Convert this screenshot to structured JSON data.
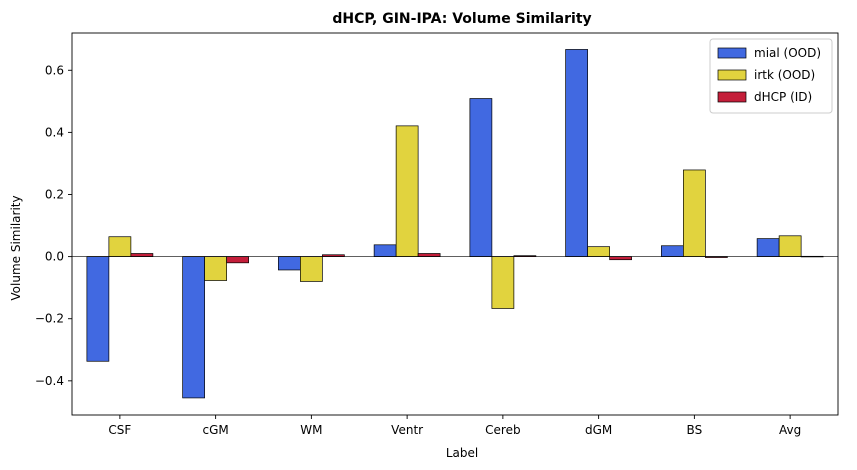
{
  "chart_data": {
    "type": "bar",
    "title": "dHCP, GIN-IPA: Volume Similarity",
    "xlabel": "Label",
    "ylabel": "Volume Similarity",
    "categories": [
      "CSF",
      "cGM",
      "WM",
      "Ventr",
      "Cereb",
      "dGM",
      "BS",
      "Avg"
    ],
    "series": [
      {
        "name": "mial (OOD)",
        "color": "#4169e1",
        "values": [
          -0.337,
          -0.455,
          -0.043,
          0.038,
          0.509,
          0.667,
          0.035,
          0.058
        ]
      },
      {
        "name": "irtk (OOD)",
        "color": "#e1d33e",
        "values": [
          0.064,
          -0.077,
          -0.08,
          0.421,
          -0.167,
          0.032,
          0.279,
          0.067
        ]
      },
      {
        "name": "dHCP (ID)",
        "color": "#c41e3a",
        "values": [
          0.01,
          -0.02,
          0.006,
          0.01,
          0.003,
          -0.01,
          -0.003,
          0.001
        ]
      }
    ],
    "ylim": [
      -0.51,
      0.72
    ],
    "yticks": [
      -0.4,
      -0.2,
      0.0,
      0.2,
      0.4,
      0.6
    ],
    "ytick_labels": [
      "−0.4",
      "−0.2",
      "0.0",
      "0.2",
      "0.4",
      "0.6"
    ],
    "legend_position": "top-right",
    "grid": false,
    "zero_line": true
  }
}
